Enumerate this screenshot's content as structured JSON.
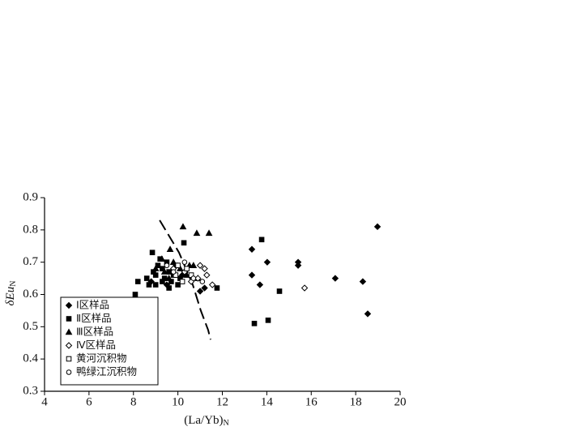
{
  "chart_data": {
    "type": "scatter",
    "xlabel": "(La/Yb)",
    "xlabel_subscript": "N",
    "ylabel": "δEu",
    "ylabel_subscript": "N",
    "xlim": [
      4,
      20
    ],
    "xticks": [
      4,
      6,
      8,
      10,
      12,
      14,
      16,
      18,
      20
    ],
    "ylim": [
      0.3,
      0.9
    ],
    "yticks": [
      0.3,
      0.4,
      0.5,
      0.6,
      0.7,
      0.8,
      0.9
    ],
    "legend": "lower left",
    "series": [
      {
        "name": "Ⅰ区样品",
        "marker": "diamond",
        "filled": true,
        "color": "#000000",
        "x": [
          18.98,
          13.33,
          14.02,
          15.41,
          15.41,
          13.33,
          13.69,
          17.08,
          18.32,
          18.54,
          9.5,
          10.2,
          11.2,
          11.0,
          8.8
        ],
        "values": [
          0.81,
          0.74,
          0.7,
          0.7,
          0.69,
          0.66,
          0.63,
          0.65,
          0.64,
          0.54,
          0.63,
          0.66,
          0.62,
          0.61,
          0.64
        ]
      },
      {
        "name": "Ⅱ区样品",
        "marker": "square",
        "filled": true,
        "color": "#000000",
        "x": [
          10.27,
          13.77,
          14.57,
          13.44,
          14.06,
          8.08,
          11.76,
          8.85,
          8.2,
          8.6,
          8.9,
          9.0,
          9.1,
          9.2,
          9.3,
          9.4,
          9.5,
          9.6,
          9.7,
          9.8,
          9.9,
          10.0,
          10.1,
          8.7,
          9.0,
          9.3,
          9.6
        ],
        "values": [
          0.76,
          0.77,
          0.61,
          0.51,
          0.52,
          0.6,
          0.62,
          0.73,
          0.64,
          0.65,
          0.67,
          0.66,
          0.69,
          0.71,
          0.68,
          0.65,
          0.7,
          0.67,
          0.64,
          0.66,
          0.69,
          0.63,
          0.65,
          0.63,
          0.63,
          0.64,
          0.62
        ]
      },
      {
        "name": "Ⅲ区样品",
        "marker": "triangle",
        "filled": true,
        "color": "#000000",
        "x": [
          10.23,
          10.85,
          11.4,
          9.65,
          10.52,
          9.28,
          9.0,
          9.4,
          9.8,
          10.1,
          10.4,
          10.7,
          10.9,
          9.6
        ],
        "values": [
          0.81,
          0.79,
          0.79,
          0.74,
          0.69,
          0.71,
          0.68,
          0.67,
          0.7,
          0.68,
          0.66,
          0.69,
          0.65,
          0.65
        ]
      },
      {
        "name": "Ⅳ区样品",
        "marker": "diamond",
        "filled": false,
        "color": "#000000",
        "x": [
          15.7,
          11.55,
          11.0,
          11.2,
          11.3,
          10.9,
          9.8,
          10.3,
          10.6
        ],
        "values": [
          0.62,
          0.63,
          0.69,
          0.68,
          0.66,
          0.65,
          0.68,
          0.67,
          0.64
        ]
      },
      {
        "name": "黄河沉积物",
        "marker": "square",
        "filled": false,
        "color": "#000000",
        "x": [
          10.0,
          10.4,
          10.6,
          9.9,
          10.2
        ],
        "values": [
          0.69,
          0.68,
          0.66,
          0.66,
          0.64
        ]
      },
      {
        "name": "鸭绿江沉积物",
        "marker": "circle",
        "filled": false,
        "color": "#000000",
        "x": [
          9.5,
          9.8,
          10.7,
          11.1,
          10.3
        ],
        "values": [
          0.69,
          0.67,
          0.65,
          0.64,
          0.7
        ]
      }
    ],
    "boundary_line": {
      "x": [
        9.18,
        10.05,
        10.67,
        11.03,
        11.36,
        11.47
      ],
      "values": [
        0.83,
        0.73,
        0.63,
        0.55,
        0.49,
        0.46
      ],
      "color": "#000000"
    }
  }
}
